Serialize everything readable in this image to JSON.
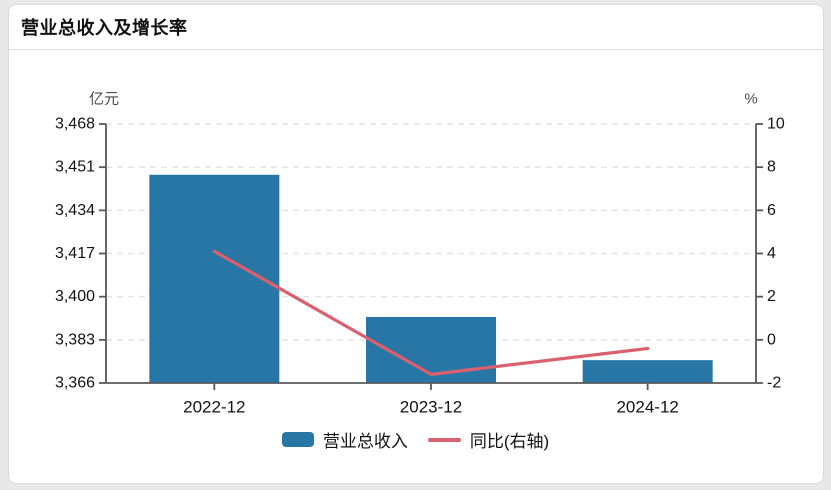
{
  "header": {
    "title": "营业总收入及增长率"
  },
  "chart_data": {
    "type": "bar",
    "subtype": "bar+line dual axis",
    "categories": [
      "2022-12",
      "2023-12",
      "2024-12"
    ],
    "series": [
      {
        "name": "营业总收入",
        "type": "bar",
        "axis": "left",
        "unit": "亿元",
        "values": [
          3448,
          3392,
          3375
        ]
      },
      {
        "name": "同比(右轴)",
        "type": "line",
        "axis": "right",
        "unit": "%",
        "values": [
          4.1,
          -1.6,
          -0.4
        ]
      }
    ],
    "left_axis": {
      "label": "亿元",
      "min": 3366,
      "max": 3468,
      "ticks": [
        "3,468",
        "3,451",
        "3,434",
        "3,417",
        "3,400",
        "3,383",
        "3,366"
      ],
      "tick_values": [
        3468,
        3451,
        3434,
        3417,
        3400,
        3383,
        3366
      ]
    },
    "right_axis": {
      "label": "%",
      "min": -2,
      "max": 10,
      "ticks": [
        "10",
        "8",
        "6",
        "4",
        "2",
        "0",
        "-2"
      ],
      "tick_values": [
        10,
        8,
        6,
        4,
        2,
        0,
        -2
      ]
    },
    "grid": "horizontal dashed",
    "legend_position": "bottom-center",
    "legend": [
      {
        "label": "营业总收入",
        "swatch": "bar"
      },
      {
        "label": "同比(右轴)",
        "swatch": "line"
      }
    ]
  },
  "colors": {
    "bar": "#2776a5",
    "line": "#dc5f6e",
    "axis": "#57585a",
    "grid": "#e3e3e3",
    "text": "#131313",
    "unit_text": "#4c4c4c"
  }
}
